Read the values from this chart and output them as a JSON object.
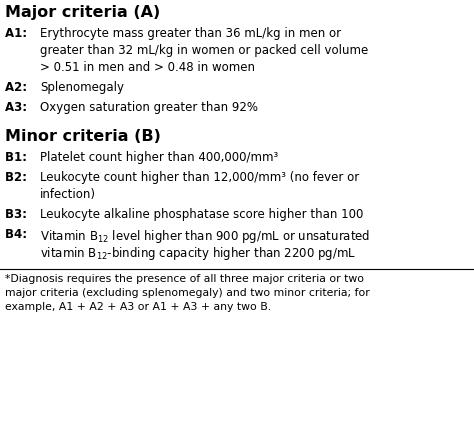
{
  "title_major": "Major criteria (A)",
  "title_minor": "Minor criteria (B)",
  "major_criteria": [
    {
      "label": "A1: ",
      "lines": [
        "Erythrocyte mass greater than 36 mL/kg in men or",
        "greater than 32 mL/kg in women or packed cell volume",
        "> 0.51 in men and > 0.48 in women"
      ]
    },
    {
      "label": "A2: ",
      "lines": [
        "Splenomegaly"
      ]
    },
    {
      "label": "A3: ",
      "lines": [
        "Oxygen saturation greater than 92%"
      ]
    }
  ],
  "minor_criteria": [
    {
      "label": "B1: ",
      "lines": [
        "Platelet count higher than 400,000/mm³"
      ]
    },
    {
      "label": "B2: ",
      "lines": [
        "Leukocyte count higher than 12,000/mm³ (no fever or",
        "infection)"
      ]
    },
    {
      "label": "B3: ",
      "lines": [
        "Leukocyte alkaline phosphatase score higher than 100"
      ]
    },
    {
      "label": "B4: ",
      "lines": [
        "Vitamin B$_{12}$ level higher than 900 pg/mL or unsaturated",
        "vitamin B$_{12}$-binding capacity higher than 2200 pg/mL"
      ]
    }
  ],
  "footnote_lines": [
    "*Diagnosis requires the presence of all three major criteria or two",
    "major criteria (excluding splenomegaly) and two minor criteria; for",
    "example, A1 + A2 + A3 or A1 + A3 + any two B."
  ],
  "bg_color": "#ffffff",
  "text_color": "#000000",
  "title_fontsize": 11.5,
  "body_fontsize": 8.5,
  "footnote_fontsize": 7.8
}
